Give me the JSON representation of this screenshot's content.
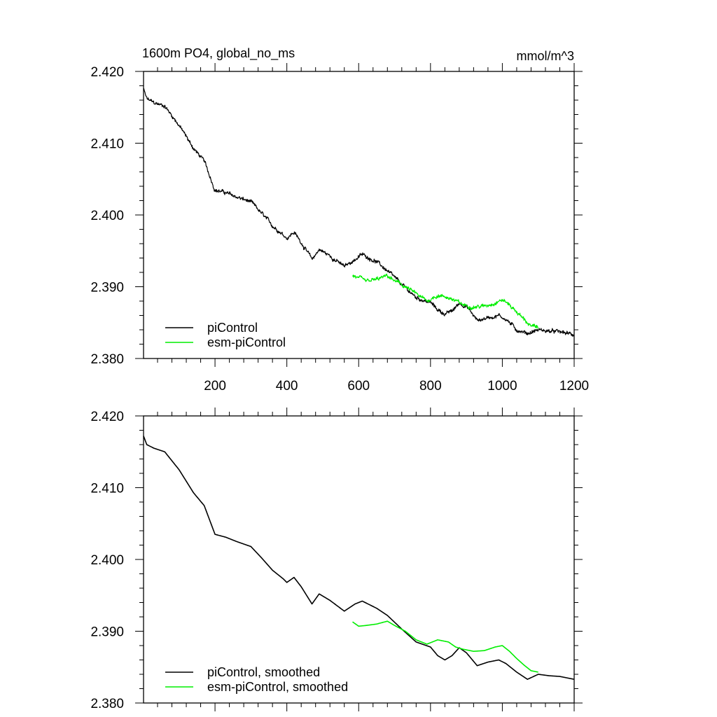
{
  "figure": {
    "title_left": "1600m PO4, global_no_ms",
    "title_right": "mmol/m^3"
  },
  "colors": {
    "piControl": "#000000",
    "esm_piControl": "#00ee00",
    "frame": "#000000",
    "background": "#ffffff"
  },
  "chart_data": [
    {
      "type": "line",
      "xlim": [
        1,
        1200
      ],
      "ylim": [
        2.38,
        2.42
      ],
      "x_ticks": [
        200,
        400,
        600,
        800,
        1000,
        1200
      ],
      "x_tick_labels": [
        "200",
        "400",
        "600",
        "800",
        "1000",
        "1200"
      ],
      "y_ticks": [
        2.38,
        2.39,
        2.4,
        2.41,
        2.42
      ],
      "y_tick_labels": [
        "2.380",
        "2.390",
        "2.400",
        "2.410",
        "2.420"
      ],
      "legend": "bottom-left",
      "noise": true,
      "series": [
        {
          "name": "piControl",
          "color_key": "piControl",
          "x": [
            1,
            10,
            30,
            60,
            100,
            140,
            170,
            200,
            230,
            260,
            300,
            330,
            360,
            390,
            400,
            420,
            440,
            470,
            490,
            520,
            560,
            590,
            610,
            650,
            680,
            720,
            760,
            800,
            820,
            840,
            860,
            880,
            900,
            930,
            960,
            990,
            1010,
            1040,
            1070,
            1100,
            1130,
            1160,
            1200
          ],
          "y": [
            2.4175,
            2.4162,
            2.4156,
            2.4152,
            2.4125,
            2.4093,
            2.4075,
            2.4035,
            2.4031,
            2.4025,
            2.4018,
            2.4002,
            2.3985,
            2.3973,
            2.3968,
            2.3976,
            2.3962,
            2.3938,
            2.3952,
            2.3943,
            2.3928,
            2.3938,
            2.3945,
            2.3935,
            2.3922,
            2.3903,
            2.3885,
            2.3878,
            2.3868,
            2.3862,
            2.3866,
            2.3877,
            2.3873,
            2.3853,
            2.3857,
            2.386,
            2.3855,
            2.384,
            2.3835,
            2.384,
            2.3838,
            2.3837,
            2.3833
          ]
        },
        {
          "name": "esm-piControl",
          "color_key": "esm_piControl",
          "x": [
            583,
            600,
            620,
            650,
            680,
            700,
            730,
            760,
            790,
            820,
            850,
            870,
            890,
            920,
            950,
            980,
            1000,
            1020,
            1040,
            1060,
            1080,
            1100
          ],
          "y": [
            2.3915,
            2.3912,
            2.3907,
            2.391,
            2.3915,
            2.3908,
            2.39,
            2.389,
            2.388,
            2.3888,
            2.3885,
            2.388,
            2.3875,
            2.3872,
            2.3873,
            2.3878,
            2.3882,
            2.3875,
            2.3865,
            2.3855,
            2.3845,
            2.3843
          ]
        }
      ],
      "legend_entries": [
        "piControl",
        "esm-piControl"
      ]
    },
    {
      "type": "line",
      "xlim": [
        1,
        1200
      ],
      "ylim": [
        2.38,
        2.42
      ],
      "x_ticks": [
        200,
        400,
        600,
        800,
        1000,
        1200
      ],
      "y_ticks": [
        2.38,
        2.39,
        2.4,
        2.41,
        2.42
      ],
      "y_tick_labels": [
        "2.380",
        "2.390",
        "2.400",
        "2.410",
        "2.420"
      ],
      "legend": "bottom-left",
      "noise": false,
      "series": [
        {
          "name": "piControl, smoothed",
          "color_key": "piControl",
          "x": [
            1,
            10,
            30,
            60,
            100,
            140,
            170,
            200,
            230,
            260,
            300,
            330,
            360,
            390,
            400,
            420,
            440,
            470,
            490,
            520,
            560,
            590,
            610,
            650,
            680,
            720,
            760,
            800,
            820,
            840,
            860,
            880,
            900,
            930,
            960,
            990,
            1010,
            1040,
            1070,
            1100,
            1130,
            1160,
            1200
          ],
          "y": [
            2.4172,
            2.416,
            2.4155,
            2.415,
            2.4125,
            2.4093,
            2.4075,
            2.4035,
            2.4031,
            2.4025,
            2.4018,
            2.4002,
            2.3985,
            2.3973,
            2.3968,
            2.3975,
            2.3962,
            2.3938,
            2.3952,
            2.3943,
            2.3928,
            2.3938,
            2.3942,
            2.3932,
            2.3922,
            2.3903,
            2.3885,
            2.3878,
            2.3866,
            2.386,
            2.3866,
            2.3877,
            2.387,
            2.3852,
            2.3857,
            2.386,
            2.3855,
            2.3843,
            2.3833,
            2.384,
            2.3838,
            2.3837,
            2.3833
          ]
        },
        {
          "name": "esm-piControl, smoothed",
          "color_key": "esm_piControl",
          "x": [
            583,
            600,
            620,
            650,
            680,
            700,
            730,
            760,
            790,
            820,
            850,
            870,
            890,
            920,
            950,
            980,
            1000,
            1020,
            1040,
            1060,
            1080,
            1100
          ],
          "y": [
            2.3913,
            2.3907,
            2.3908,
            2.391,
            2.3914,
            2.3908,
            2.39,
            2.3888,
            2.3882,
            2.3888,
            2.3885,
            2.3878,
            2.3875,
            2.3872,
            2.3873,
            2.3878,
            2.388,
            2.3872,
            2.3862,
            2.3853,
            2.3845,
            2.3843
          ]
        }
      ],
      "legend_entries": [
        "piControl, smoothed",
        "esm-piControl, smoothed"
      ]
    }
  ]
}
